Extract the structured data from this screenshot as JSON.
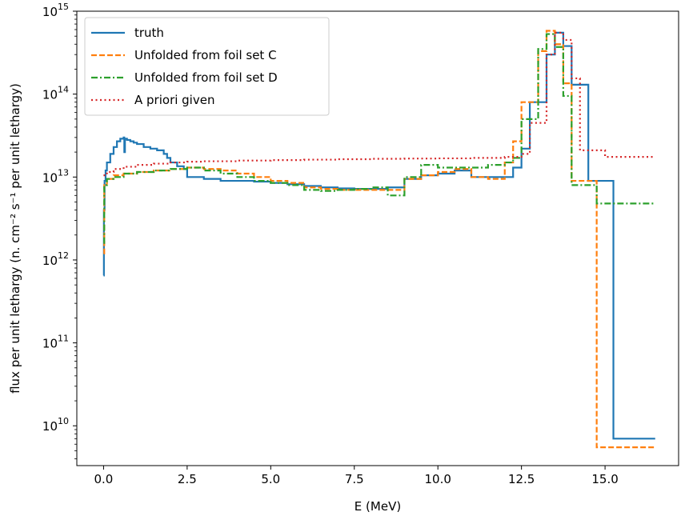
{
  "chart_data": {
    "type": "line",
    "xlabel": "E (MeV)",
    "ylabel": "flux per unit lethargy (n. cm⁻² s⁻¹ per unit lethargy)",
    "xlim": [
      -0.8,
      17.2
    ],
    "ylim_log10": [
      9.52,
      15.0
    ],
    "y_scale": "log",
    "x_ticks": [
      0.0,
      2.5,
      5.0,
      7.5,
      10.0,
      12.5,
      15.0
    ],
    "x_tick_labels": [
      "0.0",
      "2.5",
      "5.0",
      "7.5",
      "10.0",
      "12.5",
      "15.0"
    ],
    "y_tick_exponents": [
      10,
      11,
      12,
      13,
      14,
      15
    ],
    "y_tick_base": "10",
    "legend_position": "upper-left",
    "series": [
      {
        "name": "truth",
        "color": "#1f77b4",
        "style": "solid",
        "x": [
          0.0,
          0.01,
          0.03,
          0.06,
          0.1,
          0.2,
          0.3,
          0.4,
          0.5,
          0.6,
          0.62,
          0.64,
          0.7,
          0.8,
          0.9,
          1.0,
          1.2,
          1.4,
          1.6,
          1.8,
          1.9,
          2.0,
          2.2,
          2.4,
          2.5,
          2.5,
          3.0,
          3.5,
          4.0,
          4.5,
          5.0,
          5.5,
          6.0,
          6.5,
          7.0,
          7.5,
          8.0,
          8.5,
          9.0,
          9.5,
          10.0,
          10.5,
          11.0,
          11.5,
          12.0,
          12.25,
          12.5,
          12.75,
          13.0,
          13.25,
          13.5,
          13.75,
          14.0,
          14.25,
          14.5,
          14.75,
          15.0,
          15.25,
          15.5,
          15.6,
          15.75,
          16.0,
          16.25,
          16.5
        ],
        "y": [
          650000000000.0,
          4000000000000.0,
          9000000000000.0,
          12000000000000.0,
          15000000000000.0,
          19000000000000.0,
          23000000000000.0,
          27000000000000.0,
          29000000000000.0,
          30000000000000.0,
          20000000000000.0,
          29000000000000.0,
          28000000000000.0,
          27000000000000.0,
          26000000000000.0,
          25000000000000.0,
          23000000000000.0,
          22000000000000.0,
          21000000000000.0,
          19000000000000.0,
          17000000000000.0,
          15000000000000.0,
          13500000000000.0,
          12500000000000.0,
          12000000000000.0,
          10000000000000.0,
          9500000000000.0,
          9000000000000.0,
          9000000000000.0,
          8800000000000.0,
          8500000000000.0,
          8200000000000.0,
          7800000000000.0,
          7500000000000.0,
          7300000000000.0,
          7200000000000.0,
          7200000000000.0,
          7500000000000.0,
          9500000000000.0,
          10500000000000.0,
          11000000000000.0,
          12000000000000.0,
          10000000000000.0,
          10000000000000.0,
          10000000000000.0,
          13000000000000.0,
          22000000000000.0,
          80000000000000.0,
          80000000000000.0,
          300000000000000.0,
          550000000000000.0,
          380000000000000.0,
          130000000000000.0,
          130000000000000.0,
          9000000000000.0,
          9000000000000.0,
          9000000000000.0,
          7000000000.0,
          7000000000.0,
          7000000000.0,
          7000000000.0,
          7000000000.0,
          7000000000.0,
          7000000000.0
        ]
      },
      {
        "name": "Unfolded from foil set C",
        "color": "#ff7f0e",
        "style": "dashed",
        "x": [
          0.0,
          0.02,
          0.1,
          0.3,
          0.6,
          1.0,
          1.5,
          2.0,
          2.5,
          3.0,
          3.5,
          4.0,
          4.5,
          5.0,
          5.5,
          6.0,
          6.5,
          7.0,
          7.5,
          8.0,
          8.5,
          9.0,
          9.5,
          10.0,
          10.5,
          11.0,
          11.5,
          12.0,
          12.25,
          12.5,
          12.75,
          13.0,
          13.25,
          13.5,
          13.75,
          14.0,
          14.25,
          14.5,
          14.75,
          15.0,
          15.25,
          15.5,
          15.75,
          16.0,
          16.25,
          16.5
        ],
        "y": [
          1200000000000.0,
          8000000000000.0,
          9500000000000.0,
          10500000000000.0,
          11000000000000.0,
          11500000000000.0,
          12000000000000.0,
          12500000000000.0,
          13000000000000.0,
          12500000000000.0,
          12000000000000.0,
          11000000000000.0,
          10000000000000.0,
          9000000000000.0,
          8500000000000.0,
          7500000000000.0,
          7200000000000.0,
          7000000000000.0,
          7000000000000.0,
          7000000000000.0,
          7000000000000.0,
          9500000000000.0,
          10500000000000.0,
          11500000000000.0,
          12500000000000.0,
          10000000000000.0,
          9500000000000.0,
          15000000000000.0,
          27000000000000.0,
          80000000000000.0,
          80000000000000.0,
          330000000000000.0,
          580000000000000.0,
          400000000000000.0,
          135000000000000.0,
          9000000000000.0,
          9000000000000.0,
          9000000000000.0,
          5500000000.0,
          5500000000.0,
          5500000000.0,
          5500000000.0,
          5500000000.0,
          5500000000.0,
          5500000000.0,
          5500000000.0
        ]
      },
      {
        "name": "Unfolded from foil set D",
        "color": "#2ca02c",
        "style": "dashdot",
        "x": [
          0.0,
          0.02,
          0.1,
          0.3,
          0.6,
          1.0,
          1.5,
          2.0,
          2.5,
          3.0,
          3.5,
          4.0,
          4.5,
          5.0,
          5.5,
          6.0,
          6.5,
          7.0,
          7.5,
          8.0,
          8.5,
          8.6,
          9.0,
          9.5,
          10.0,
          10.5,
          11.0,
          11.5,
          12.0,
          12.25,
          12.5,
          12.75,
          13.0,
          13.25,
          13.5,
          13.75,
          14.0,
          14.25,
          14.5,
          14.75,
          15.0,
          15.25,
          15.5,
          15.75,
          16.0,
          16.25,
          16.5
        ],
        "y": [
          1600000000000.0,
          8000000000000.0,
          9500000000000.0,
          10000000000000.0,
          11000000000000.0,
          11500000000000.0,
          12000000000000.0,
          12500000000000.0,
          13000000000000.0,
          12000000000000.0,
          11000000000000.0,
          10000000000000.0,
          9000000000000.0,
          8500000000000.0,
          8000000000000.0,
          7000000000000.0,
          6800000000000.0,
          7000000000000.0,
          7200000000000.0,
          7500000000000.0,
          6000000000000.0,
          6000000000000.0,
          10000000000000.0,
          14000000000000.0,
          13000000000000.0,
          13000000000000.0,
          13000000000000.0,
          14000000000000.0,
          15000000000000.0,
          17000000000000.0,
          50000000000000.0,
          50000000000000.0,
          350000000000000.0,
          530000000000000.0,
          370000000000000.0,
          95000000000000.0,
          8000000000000.0,
          8000000000000.0,
          8000000000000.0,
          4800000000000.0,
          4800000000000.0,
          4800000000000.0,
          4800000000000.0,
          4800000000000.0,
          4800000000000.0,
          4800000000000.0,
          4800000000000.0
        ]
      },
      {
        "name": "A priori given",
        "color": "#d62728",
        "style": "dotted",
        "x": [
          0.0,
          0.1,
          0.3,
          0.6,
          1.0,
          1.5,
          2.0,
          2.5,
          3.0,
          4.0,
          5.0,
          6.0,
          7.0,
          8.0,
          9.0,
          10.0,
          11.0,
          12.0,
          12.5,
          12.75,
          13.0,
          13.25,
          13.5,
          13.75,
          14.0,
          14.25,
          14.5,
          14.75,
          15.0,
          15.25,
          15.5,
          15.75,
          16.0,
          16.25,
          16.5
        ],
        "y": [
          10500000000000.0,
          11500000000000.0,
          12500000000000.0,
          13300000000000.0,
          14000000000000.0,
          14500000000000.0,
          15000000000000.0,
          15300000000000.0,
          15500000000000.0,
          15800000000000.0,
          16000000000000.0,
          16200000000000.0,
          16400000000000.0,
          16600000000000.0,
          16700000000000.0,
          16800000000000.0,
          17000000000000.0,
          17500000000000.0,
          19000000000000.0,
          45000000000000.0,
          45000000000000.0,
          300000000000000.0,
          550000000000000.0,
          450000000000000.0,
          155000000000000.0,
          21000000000000.0,
          21000000000000.0,
          21000000000000.0,
          17500000000000.0,
          17500000000000.0,
          17500000000000.0,
          17500000000000.0,
          17500000000000.0,
          17500000000000.0,
          17500000000000.0
        ]
      }
    ]
  }
}
